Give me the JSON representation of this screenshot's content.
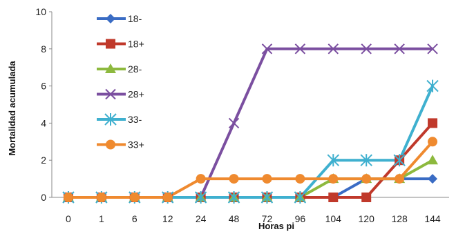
{
  "chart_data": {
    "type": "line",
    "xlabel": "Horas pi",
    "ylabel": "Mortalidad acumulada",
    "ylim": [
      0,
      10
    ],
    "yticks": [
      0,
      2,
      4,
      6,
      8,
      10
    ],
    "categories": [
      "0",
      "1",
      "6",
      "12",
      "24",
      "48",
      "72",
      "96",
      "104",
      "120",
      "128",
      "144"
    ],
    "grid": false,
    "legend_position": "upper-left inside",
    "series": [
      {
        "name": "18-",
        "color": "#3a6cc4",
        "marker": "diamond",
        "values": [
          0,
          0,
          0,
          0,
          0,
          0,
          0,
          0,
          0,
          1,
          1,
          1
        ]
      },
      {
        "name": "18+",
        "color": "#c0392b",
        "marker": "square",
        "values": [
          0,
          0,
          0,
          0,
          0,
          0,
          0,
          0,
          0,
          0,
          2,
          4
        ]
      },
      {
        "name": "28-",
        "color": "#8db93e",
        "marker": "triangle",
        "values": [
          0,
          0,
          0,
          0,
          0,
          0,
          0,
          0,
          1,
          1,
          1,
          2
        ]
      },
      {
        "name": "28+",
        "color": "#7b4fa0",
        "marker": "x",
        "values": [
          0,
          0,
          0,
          0,
          0,
          4,
          8,
          8,
          8,
          8,
          8,
          8
        ]
      },
      {
        "name": "33-",
        "color": "#3fb0cf",
        "marker": "star",
        "values": [
          0,
          0,
          0,
          0,
          0,
          0,
          0,
          0,
          2,
          2,
          2,
          6
        ]
      },
      {
        "name": "33+",
        "color": "#ef8a2f",
        "marker": "circle",
        "values": [
          0,
          0,
          0,
          0,
          1,
          1,
          1,
          1,
          1,
          1,
          1,
          3
        ]
      }
    ]
  }
}
